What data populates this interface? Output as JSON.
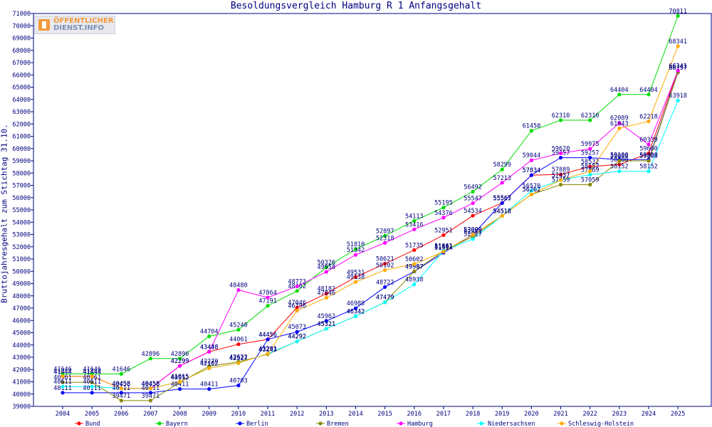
{
  "chart_data": {
    "type": "line",
    "title": "Besoldungsvergleich Hamburg R 1 Anfangsgehalt",
    "ylabel": "Bruttojahresgehalt zum Stichtag 31.10.",
    "xlabel": "",
    "ylim": [
      39000,
      71000
    ],
    "ytick_step": 1000,
    "grid": false,
    "legend_position": "bottom",
    "categories": [
      "2004",
      "2005",
      "2006",
      "2007",
      "2008",
      "2009",
      "2010",
      "2011",
      "2012",
      "2013",
      "2014",
      "2015",
      "2016",
      "2017",
      "2018",
      "2019",
      "2020",
      "2021",
      "2022",
      "2023",
      "2024",
      "2025"
    ],
    "series": [
      {
        "name": "Bund",
        "color": "#ff0000",
        "values": [
          41444,
          41444,
          40458,
          40458,
          42299,
          43448,
          44061,
          44456,
          47046,
          48182,
          49531,
          50621,
          51735,
          52951,
          54534,
          55567,
          57834,
          57889,
          58532,
          58700,
          59600,
          66341
        ]
      },
      {
        "name": "Bayern",
        "color": "#00dd00",
        "values": [
          41646,
          41646,
          41646,
          42896,
          42896,
          44704,
          45240,
          47191,
          48402,
          50326,
          51810,
          52897,
          54113,
          55195,
          56492,
          58299,
          61450,
          62310,
          62310,
          64404,
          64404,
          70811
        ]
      },
      {
        "name": "Berlin",
        "color": "#0000ff",
        "values": [
          40111,
          40111,
          40111,
          40111,
          40411,
          40411,
          40703,
          44456,
          45073,
          45962,
          46988,
          48722,
          49987,
          51514,
          53000,
          55563,
          57834,
          59257,
          59257,
          59100,
          59100,
          66197
        ]
      },
      {
        "name": "Bremen",
        "color": "#888800",
        "values": [
          40961,
          40961,
          39471,
          39471,
          40952,
          42270,
          42622,
          43243,
          44292,
          45321,
          46342,
          47479,
          49997,
          51661,
          52827,
          54518,
          56262,
          57059,
          57059,
          59000,
          59000,
          66197
        ]
      },
      {
        "name": "Hamburg",
        "color": "#ff00ff",
        "values": [
          41444,
          41444,
          40458,
          40458,
          42299,
          43438,
          48480,
          47864,
          48773,
          49958,
          51342,
          52318,
          53416,
          54376,
          55547,
          57213,
          59044,
          59620,
          59975,
          62089,
          60339,
          66341
        ]
      },
      {
        "name": "Niedersachsen",
        "color": "#00ffff",
        "values": [
          40611,
          40611,
          40458,
          40458,
          41015,
          42102,
          42527,
          43291,
          44292,
          45321,
          46342,
          47479,
          48938,
          51661,
          52627,
          54518,
          56570,
          57437,
          57869,
          58152,
          58152,
          63918
        ]
      },
      {
        "name": "Schleswig-Holstein",
        "color": "#ffaa00",
        "values": [
          41444,
          41444,
          40458,
          40458,
          41015,
          42102,
          42527,
          43291,
          46796,
          47846,
          49138,
          50102,
          50602,
          51601,
          53000,
          54518,
          56262,
          57437,
          58152,
          61643,
          62218,
          68341
        ]
      }
    ]
  },
  "logo": {
    "line1": "ÖFFENTLICHER",
    "line2": "DIENST.INFO"
  }
}
